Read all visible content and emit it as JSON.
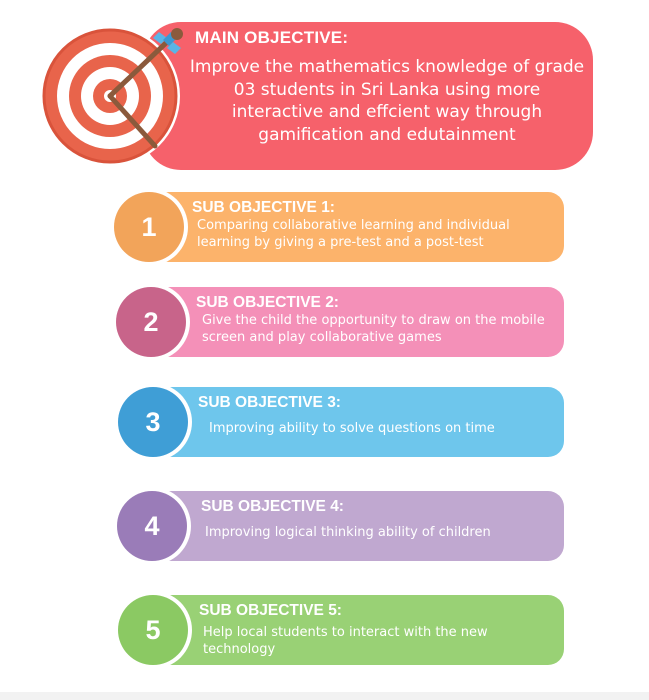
{
  "main": {
    "heading": "MAIN OBJECTIVE:",
    "text": "Improve the mathematics knowledge of grade 03 students in Sri Lanka using more interactive and effcient way through gamification and edutainment",
    "color": "#f6616b",
    "icon": "target-arrow-icon"
  },
  "subs": [
    {
      "number": "1",
      "heading": "SUB OBJECTIVE 1:",
      "text": "Comparing collaborative learning and individual learning by giving a pre-test and a post-test",
      "card_color": "#fcb36b",
      "circle_color": "#f2a45a"
    },
    {
      "number": "2",
      "heading": "SUB OBJECTIVE 2:",
      "text": "Give the child the opportunity to draw on the mobile screen and play collaborative games",
      "card_color": "#f490b8",
      "circle_color": "#c8648a"
    },
    {
      "number": "3",
      "heading": "SUB OBJECTIVE 3:",
      "text": "Improving ability to solve questions on time",
      "card_color": "#6ec6ec",
      "circle_color": "#3f9ed6"
    },
    {
      "number": "4",
      "heading": "SUB OBJECTIVE 4:",
      "text": "Improving logical thinking ability of children",
      "card_color": "#c0a8d0",
      "circle_color": "#9a7cb8"
    },
    {
      "number": "5",
      "heading": "SUB OBJECTIVE 5:",
      "text": "Help local students to interact with the new technology",
      "card_color": "#99d175",
      "circle_color": "#8bc963"
    }
  ]
}
